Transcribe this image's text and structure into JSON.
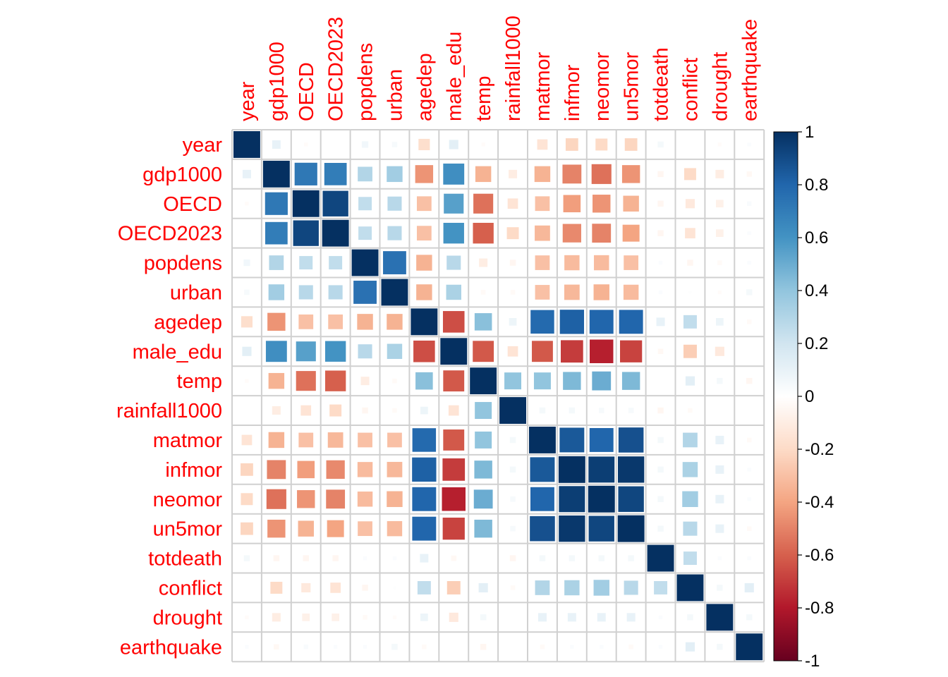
{
  "chart_data": {
    "type": "heatmap",
    "method": "square",
    "label_color": "#FF0000",
    "variables": [
      "year",
      "gdp1000",
      "OECD",
      "OECD2023",
      "popdens",
      "urban",
      "agedep",
      "male_edu",
      "temp",
      "rainfall1000",
      "matmor",
      "infmor",
      "neomor",
      "un5mor",
      "totdeath",
      "conflict",
      "drought",
      "earthquake"
    ],
    "matrix": [
      [
        1.0,
        0.1,
        -0.02,
        0.0,
        0.06,
        0.04,
        -0.18,
        0.12,
        -0.02,
        0.0,
        -0.15,
        -0.22,
        -0.2,
        -0.22,
        0.05,
        0.0,
        -0.02,
        0.02
      ],
      [
        0.1,
        1.0,
        0.72,
        0.7,
        0.3,
        0.35,
        -0.45,
        0.62,
        -0.35,
        -0.1,
        -0.35,
        -0.5,
        -0.55,
        -0.45,
        -0.05,
        -0.2,
        -0.1,
        -0.04
      ],
      [
        -0.02,
        0.72,
        1.0,
        0.92,
        0.25,
        0.28,
        -0.3,
        0.55,
        -0.55,
        -0.15,
        -0.3,
        -0.42,
        -0.45,
        -0.35,
        -0.05,
        -0.12,
        -0.08,
        0.03
      ],
      [
        0.0,
        0.7,
        0.92,
        1.0,
        0.25,
        0.28,
        -0.3,
        0.6,
        -0.6,
        -0.2,
        -0.33,
        -0.48,
        -0.5,
        -0.4,
        -0.05,
        -0.15,
        -0.08,
        0.02
      ],
      [
        0.06,
        0.3,
        0.25,
        0.25,
        1.0,
        0.75,
        -0.35,
        0.28,
        -0.1,
        -0.05,
        -0.3,
        -0.32,
        -0.32,
        -0.3,
        0.02,
        -0.05,
        -0.03,
        0.02
      ],
      [
        0.04,
        0.35,
        0.28,
        0.28,
        0.75,
        1.0,
        -0.35,
        0.32,
        -0.03,
        -0.03,
        -0.3,
        -0.33,
        -0.35,
        -0.32,
        0.02,
        0.01,
        -0.02,
        0.05
      ],
      [
        -0.18,
        -0.45,
        -0.3,
        -0.3,
        -0.35,
        -0.35,
        1.0,
        -0.65,
        0.42,
        0.08,
        0.78,
        0.82,
        0.8,
        0.8,
        0.1,
        0.25,
        0.08,
        -0.03
      ],
      [
        0.12,
        0.62,
        0.55,
        0.6,
        0.28,
        0.32,
        -0.65,
        1.0,
        -0.62,
        -0.15,
        -0.62,
        -0.7,
        -0.78,
        -0.68,
        -0.04,
        -0.25,
        -0.12,
        0.0
      ],
      [
        -0.02,
        -0.35,
        -0.55,
        -0.6,
        -0.1,
        -0.03,
        0.42,
        -0.62,
        1.0,
        0.4,
        0.4,
        0.45,
        0.5,
        0.45,
        0.0,
        0.12,
        0.05,
        -0.05
      ],
      [
        0.0,
        -0.1,
        -0.15,
        -0.2,
        -0.05,
        -0.03,
        0.08,
        -0.15,
        0.4,
        1.0,
        0.05,
        0.05,
        0.04,
        0.04,
        -0.05,
        -0.03,
        0.0,
        0.0
      ],
      [
        -0.15,
        -0.35,
        -0.3,
        -0.33,
        -0.3,
        -0.3,
        0.78,
        -0.62,
        0.4,
        0.05,
        1.0,
        0.85,
        0.8,
        0.88,
        0.05,
        0.3,
        0.1,
        -0.03
      ],
      [
        -0.22,
        -0.5,
        -0.42,
        -0.48,
        -0.32,
        -0.33,
        0.82,
        -0.7,
        0.45,
        0.05,
        0.85,
        1.0,
        0.95,
        0.97,
        0.05,
        0.32,
        0.1,
        0.02
      ],
      [
        -0.2,
        -0.55,
        -0.45,
        -0.5,
        -0.32,
        -0.35,
        0.8,
        -0.78,
        0.5,
        0.04,
        0.8,
        0.95,
        1.0,
        0.92,
        0.05,
        0.35,
        0.1,
        0.02
      ],
      [
        -0.22,
        -0.45,
        -0.35,
        -0.4,
        -0.3,
        -0.32,
        0.8,
        -0.68,
        0.45,
        0.04,
        0.88,
        0.97,
        0.92,
        1.0,
        0.05,
        0.28,
        0.1,
        -0.03
      ],
      [
        0.05,
        -0.05,
        -0.05,
        -0.05,
        0.02,
        0.02,
        0.1,
        -0.04,
        0.0,
        -0.05,
        0.05,
        0.05,
        0.05,
        0.05,
        1.0,
        0.25,
        0.02,
        0.02
      ],
      [
        0.0,
        -0.2,
        -0.12,
        -0.15,
        -0.05,
        0.01,
        0.25,
        -0.25,
        0.12,
        -0.03,
        0.3,
        0.32,
        0.35,
        0.28,
        0.25,
        1.0,
        0.05,
        0.12
      ],
      [
        -0.02,
        -0.1,
        -0.08,
        -0.08,
        -0.03,
        -0.02,
        0.08,
        -0.12,
        0.05,
        0.0,
        0.1,
        0.1,
        0.1,
        0.1,
        0.02,
        0.05,
        1.0,
        0.05
      ],
      [
        0.02,
        -0.04,
        0.03,
        0.02,
        0.02,
        0.05,
        -0.03,
        0.0,
        -0.05,
        0.0,
        -0.03,
        0.02,
        0.02,
        -0.03,
        0.02,
        0.12,
        0.05,
        1.0
      ]
    ],
    "colorbar": {
      "ticks": [
        "1",
        "0.8",
        "0.6",
        "0.4",
        "0.2",
        "0",
        "-0.2",
        "-0.4",
        "-0.6",
        "-0.8",
        "-1"
      ],
      "range": [
        -1,
        1
      ],
      "placement": "right"
    },
    "palette": [
      "#67001F",
      "#B2182B",
      "#D6604D",
      "#F4A582",
      "#FDDBC7",
      "#FFFFFF",
      "#D1E5F0",
      "#92C5DE",
      "#4393C3",
      "#2166AC",
      "#053061"
    ]
  }
}
